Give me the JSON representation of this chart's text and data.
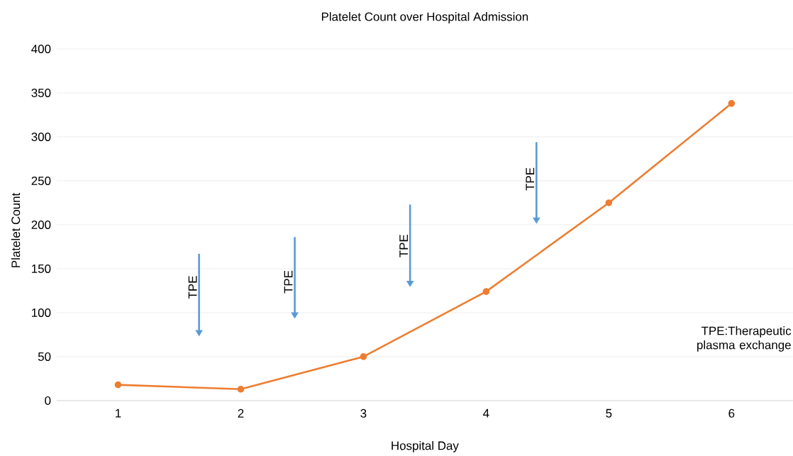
{
  "chart_data": {
    "type": "line",
    "title": "Platelet Count over Hospital Admission",
    "xlabel": "Hospital Day",
    "ylabel": "Platelet Count",
    "categories": [
      "1",
      "2",
      "3",
      "4",
      "5",
      "6"
    ],
    "series": [
      {
        "color": "#ed7d31",
        "values": [
          18,
          13,
          50,
          124,
          225,
          338
        ]
      }
    ],
    "ylim": [
      0,
      400
    ],
    "yticks": [
      0,
      50,
      100,
      150,
      200,
      250,
      300,
      350,
      400
    ],
    "grid": "y",
    "marker": "circle",
    "line_style": "solid",
    "annotations": [
      "TPE",
      "TPE",
      "TPE",
      "TPE",
      "TPE:Therapeutic plasma exchange"
    ]
  }
}
